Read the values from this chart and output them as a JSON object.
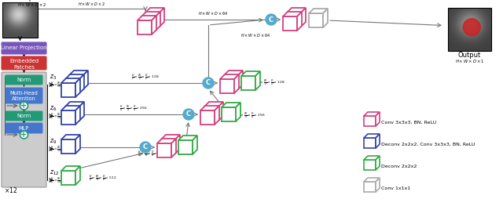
{
  "bg_color": "#ffffff",
  "colors": {
    "pink": "#D44080",
    "blue": "#3344AA",
    "green": "#33AA44",
    "gray": "#AAAAAA",
    "purple": "#7755BB",
    "red": "#CC3333",
    "teal": "#229977",
    "light_blue": "#4477CC",
    "concat_circle": "#55AACC",
    "arrow": "#888888",
    "transformer_bg": "#CCCCCC"
  },
  "legend_items": [
    {
      "label": "Conv 3x3x3, BN, ReLU",
      "color": "#D44080"
    },
    {
      "label": "Deconv 2x2x2, Conv 3x3x3, BN, ReLU",
      "color": "#3344AA"
    },
    {
      "label": "Deconv 2x2x2",
      "color": "#33AA44"
    },
    {
      "label": "Conv 1x1x1",
      "color": "#AAAAAA"
    }
  ]
}
